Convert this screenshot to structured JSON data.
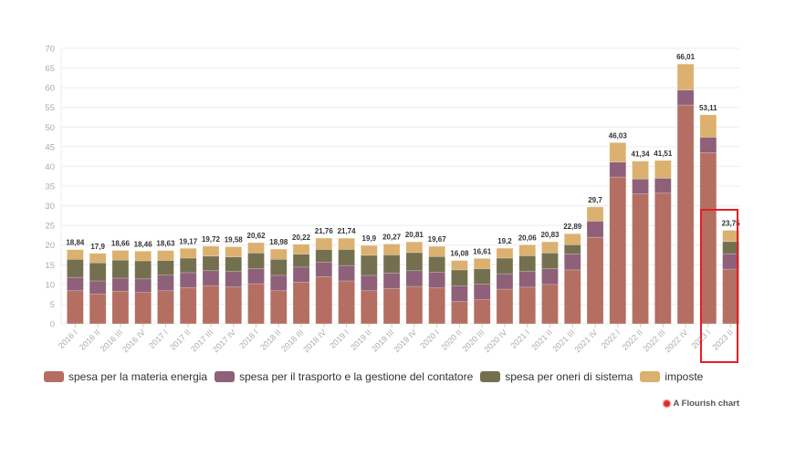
{
  "chart_data": {
    "type": "bar",
    "stacked": true,
    "title": "",
    "xlabel": "",
    "ylabel": "",
    "ylim": [
      0,
      70
    ],
    "yticks": [
      0,
      5,
      10,
      15,
      20,
      25,
      30,
      35,
      40,
      45,
      50,
      55,
      60,
      65,
      70
    ],
    "grid": true,
    "legend_position": "bottom-left",
    "categories": [
      "2016 I",
      "2016 II",
      "2016 III",
      "2016 IV",
      "2017 I",
      "2017 II",
      "2017 III",
      "2017 IV",
      "2018 I",
      "2018 II",
      "2018 III",
      "2018 IV",
      "2019 I",
      "2019 II",
      "2019 III",
      "2019 IV",
      "2020 I",
      "2020 II",
      "2020 III",
      "2020 IV",
      "2021 I",
      "2021 II",
      "2021 III",
      "2021 IV",
      "2022 I",
      "2022 II",
      "2022 III",
      "2022 IV",
      "2023 I",
      "2023 II"
    ],
    "series": [
      {
        "name": "spesa per la materia energia",
        "color": "#b46e62",
        "values": [
          8.4,
          7.6,
          8.3,
          8.0,
          8.4,
          9.2,
          9.7,
          9.4,
          10.2,
          8.4,
          10.6,
          12.0,
          10.9,
          8.4,
          9.0,
          9.5,
          9.1,
          5.7,
          6.1,
          8.8,
          9.3,
          10.0,
          13.7,
          22.0,
          37.3,
          33.0,
          33.2,
          55.6,
          43.5,
          13.9
        ]
      },
      {
        "name": "spesa per il trasporto e la gestione del contatore",
        "color": "#8e6079",
        "values": [
          3.4,
          3.3,
          3.3,
          3.4,
          4.0,
          3.8,
          3.8,
          3.9,
          3.8,
          3.9,
          3.8,
          3.7,
          3.9,
          3.9,
          3.9,
          4.0,
          4.0,
          3.9,
          4.0,
          3.9,
          4.0,
          4.0,
          4.0,
          4.1,
          3.8,
          3.8,
          3.8,
          3.8,
          3.9,
          3.9
        ]
      },
      {
        "name": "spesa per oneri di sistema",
        "color": "#74704f",
        "values": [
          4.6,
          4.6,
          4.6,
          4.6,
          3.7,
          3.7,
          3.7,
          3.7,
          4.0,
          4.1,
          3.3,
          3.2,
          4.1,
          5.1,
          4.6,
          4.6,
          4.0,
          4.1,
          3.9,
          4.0,
          4.0,
          4.0,
          2.4,
          0,
          0,
          0,
          0,
          0,
          0,
          3.1
        ]
      },
      {
        "name": "imposte",
        "color": "#dcb06f",
        "values": [
          2.44,
          2.4,
          2.46,
          2.46,
          2.53,
          2.47,
          2.52,
          2.58,
          2.62,
          2.58,
          2.52,
          2.86,
          2.84,
          2.5,
          2.77,
          2.71,
          2.57,
          2.38,
          2.61,
          2.5,
          2.76,
          2.83,
          2.79,
          3.6,
          4.93,
          4.54,
          4.51,
          6.61,
          5.71,
          2.85
        ]
      }
    ],
    "totals": [
      18.84,
      17.9,
      18.66,
      18.46,
      18.63,
      19.17,
      19.72,
      19.58,
      20.62,
      18.98,
      20.22,
      21.76,
      21.74,
      19.9,
      20.27,
      20.81,
      19.67,
      16.08,
      16.61,
      19.2,
      20.06,
      20.83,
      22.89,
      29.7,
      46.03,
      41.34,
      41.51,
      66.01,
      53.11,
      23.75
    ],
    "total_labels": [
      "18,84",
      "17,9",
      "18,66",
      "18,46",
      "18,63",
      "19,17",
      "19,72",
      "19,58",
      "20,62",
      "18,98",
      "20,22",
      "21,76",
      "21,74",
      "19,9",
      "20,27",
      "20,81",
      "19,67",
      "16,08",
      "16,61",
      "19,2",
      "20,06",
      "20,83",
      "22,89",
      "29,7",
      "46,03",
      "41,34",
      "41,51",
      "66,01",
      "53,11",
      "23,75"
    ],
    "highlighted_category": "2023 II"
  },
  "legend": {
    "items": [
      {
        "label": "spesa per la materia energia",
        "color": "#b46e62"
      },
      {
        "label": "spesa per il trasporto e la gestione del contatore",
        "color": "#8e6079"
      },
      {
        "label": "spesa per oneri di sistema",
        "color": "#74704f"
      },
      {
        "label": "imposte",
        "color": "#dcb06f"
      }
    ]
  },
  "credit": {
    "text": "A Flourish chart"
  },
  "colors": {
    "highlight": "#e41f26",
    "grid": "#ececec",
    "axis_text": "#aaaaaa",
    "label_text": "#333333"
  }
}
